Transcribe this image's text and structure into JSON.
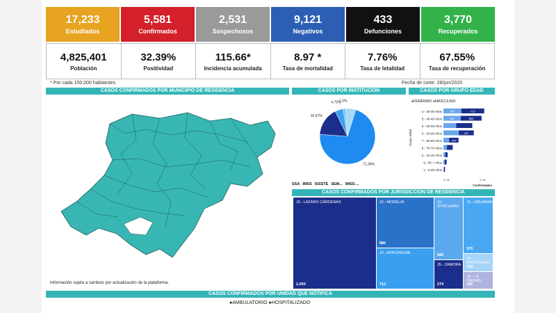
{
  "stats_top": [
    {
      "value": "17,233",
      "label": "Estudiados",
      "color": "#e8a321"
    },
    {
      "value": "5,581",
      "label": "Confirmados",
      "color": "#d3202a"
    },
    {
      "value": "2,531",
      "label": "Sospechosos",
      "color": "#9a9a9a"
    },
    {
      "value": "9,121",
      "label": "Negativos",
      "color": "#2c5fb3"
    },
    {
      "value": "433",
      "label": "Defunciones",
      "color": "#111111"
    },
    {
      "value": "3,770",
      "label": "Recuperados",
      "color": "#33b24a"
    }
  ],
  "stats_bottom": [
    {
      "value": "4,825,401",
      "label": "Población"
    },
    {
      "value": "32.39%",
      "label": "Positividad"
    },
    {
      "value": "115.66*",
      "label": "Incidencia acumulada"
    },
    {
      "value": "8.97 *",
      "label": "Tasa de mortalidad"
    },
    {
      "value": "7.76%",
      "label": "Tasa de letalidad"
    },
    {
      "value": "67.55%",
      "label": "Tasa de recuperación"
    }
  ],
  "footnote": "* Por cada 100,000 habitantes",
  "fecha_corte": "Fecha de corte: 28/jun/2020",
  "headers": {
    "municipio": "CASOS CONFIRMADOS POR MUNICIPIO DE RESIDENCIA",
    "institucion": "CASOS POR INSTITUCIÓN",
    "grupo_edad": "CASOS POR GRUPO EDAD",
    "jurisdiccion": "CASOS CONFIRMADOS POR JURISDICCIÓN DE RESIDENCIA",
    "unidad": "CASOS CONFIRMADOS POR UNIDAD QUE NOTIFICA"
  },
  "map_note": "Información sujeta a cambios por actualización de la plataforma.",
  "map_color": "#38b6b3",
  "bottom_legend": "●AMBULATORIO ●HOSPITALIZADO",
  "chart_data": [
    {
      "type": "pie",
      "title": "CASOS POR INSTITUCIÓN",
      "labels": [
        "SSA",
        "IMSS",
        "ISSSTE",
        "SEM...",
        "IMSS-..."
      ],
      "values": [
        71.34,
        16.57,
        4.75,
        1.5,
        5.84
      ],
      "slice_labels": [
        "71.34%",
        "16.57%",
        "4.75%",
        "1.5%",
        ""
      ],
      "colors": [
        "#1f8bf0",
        "#1c2e8c",
        "#3da1ee",
        "#6fc2f5",
        "#a6daf8"
      ],
      "legend": "bottom"
    },
    {
      "type": "bar",
      "title": "CASOS POR GRUPO EDAD",
      "legend": [
        "FEMENINO",
        "MASCULINO"
      ],
      "ylabel": "Grupo edad",
      "xlabel": "Confirmados",
      "categories": [
        "4.- 30-39 Años",
        "5.- 40-49 Años",
        "6.- 50-59 Años",
        "3.- 20-29 Años",
        "7.- 60-69 Años",
        "8.- 70-79 Años",
        "2.- 10-19 Años",
        "9.- 80 + Años",
        "1.- 0-09 Años"
      ],
      "series": [
        {
          "name": "FEMENINO",
          "values": [
            560,
            540,
            400,
            480,
            180,
            110,
            60,
            40,
            20
          ]
        },
        {
          "name": "MASCULINO",
          "values": [
            712,
            650,
            500,
            467,
            290,
            180,
            70,
            60,
            30
          ]
        }
      ],
      "bar_labels": [
        [
          "560",
          "712"
        ],
        [
          "540",
          "650"
        ],
        [
          "",
          ""
        ],
        [
          "",
          "467"
        ],
        [
          "",
          "290"
        ],
        [
          "",
          ""
        ],
        [
          "",
          ""
        ],
        [
          "",
          ""
        ],
        [
          "",
          ""
        ]
      ],
      "axis_ticks": [
        "0 mil",
        "1 mil"
      ],
      "colors": [
        "#6aa6ea",
        "#1c2e8c"
      ]
    },
    {
      "type": "treemap",
      "title": "CASOS CONFIRMADOS POR JURISDICCIÓN DE RESIDENCIA",
      "items": [
        {
          "name": "J5.- LÁZARO CÁRDENAS",
          "value": 2000,
          "label": "2,000",
          "color": "#1c2e8c"
        },
        {
          "name": "J2.- MORELIA",
          "value": 880,
          "label": "880",
          "color": "#2a72c8"
        },
        {
          "name": "J3.- APATZINGÁN",
          "value": 712,
          "label": "712",
          "color": "#3a9ff0"
        },
        {
          "name": "J3.- ZITÁCUARO",
          "value": 580,
          "label": "580",
          "color": "#5aa8ee"
        },
        {
          "name": "J1.- URUAPAN",
          "value": 575,
          "label": "575",
          "color": "#4aa8f2"
        },
        {
          "name": "J5.- ZAMORA",
          "value": 274,
          "label": "274",
          "color": "#1c2e8c"
        },
        {
          "name": "J4.- PÁTZCUARO",
          "value": 183,
          "label": "183",
          "color": "#a6d4f8"
        },
        {
          "name": "J3.- LA PIEDAD",
          "value": 180,
          "label": "180",
          "color": "#b0b3e0"
        }
      ]
    }
  ]
}
